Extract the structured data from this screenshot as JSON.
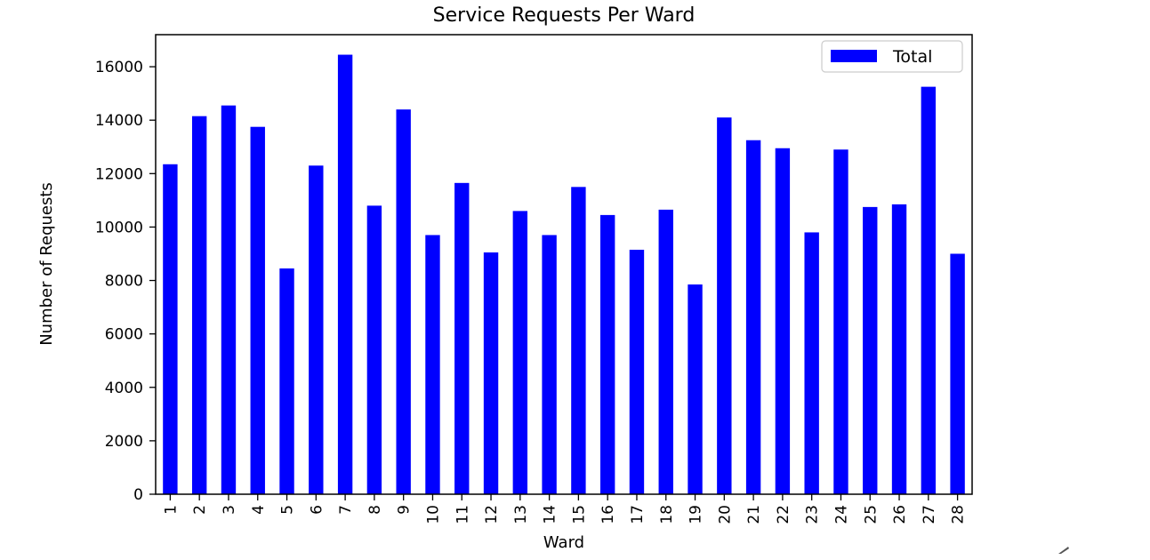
{
  "chart_data": {
    "type": "bar",
    "title": "Service Requests Per Ward",
    "xlabel": "Ward",
    "ylabel": "Number of Requests",
    "categories": [
      "1",
      "2",
      "3",
      "4",
      "5",
      "6",
      "7",
      "8",
      "9",
      "10",
      "11",
      "12",
      "13",
      "14",
      "15",
      "16",
      "17",
      "18",
      "19",
      "20",
      "21",
      "22",
      "23",
      "24",
      "25",
      "26",
      "27",
      "28"
    ],
    "series": [
      {
        "name": "Total",
        "color": "#0000ff",
        "values": [
          12350,
          14150,
          14550,
          13750,
          8450,
          12300,
          16450,
          10800,
          14400,
          9700,
          11650,
          9050,
          10600,
          9700,
          11500,
          10450,
          9150,
          10650,
          7850,
          14100,
          13250,
          12950,
          9800,
          12900,
          10750,
          10850,
          15250,
          9000
        ]
      }
    ],
    "ylim": [
      0,
      17200
    ],
    "yticks": [
      0,
      2000,
      4000,
      6000,
      8000,
      10000,
      12000,
      14000,
      16000
    ],
    "grid": false,
    "legend_position": "top-right"
  },
  "resize_icon": "resize-grip-icon"
}
